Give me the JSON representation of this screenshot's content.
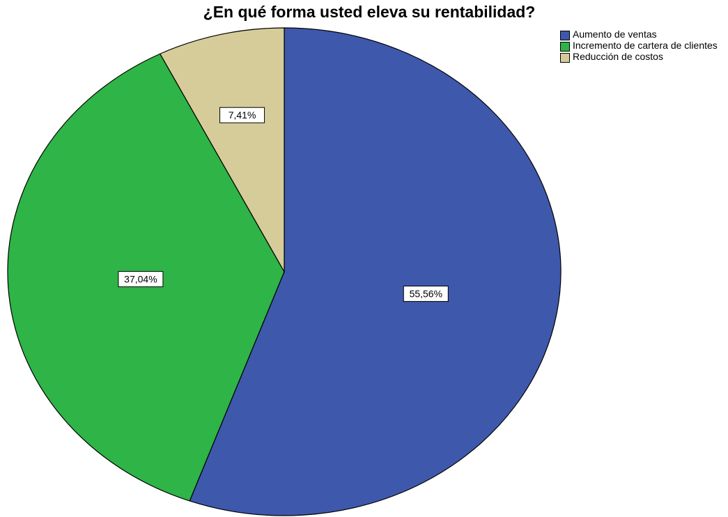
{
  "chart_data": {
    "type": "pie",
    "title": "¿En qué forma usted eleva su rentabilidad?",
    "slices": [
      {
        "name": "Aumento de ventas",
        "value": 55.56,
        "label": "55,56%",
        "color": "#3e58ab"
      },
      {
        "name": "Incremento de cartera de clientes",
        "value": 37.04,
        "label": "37,04%",
        "color": "#2eb447"
      },
      {
        "name": "Reducción de costos",
        "value": 7.41,
        "label": "7,41%",
        "color": "#d5cc99"
      }
    ],
    "legend_position": "top-right",
    "start": "top, clockwise"
  }
}
